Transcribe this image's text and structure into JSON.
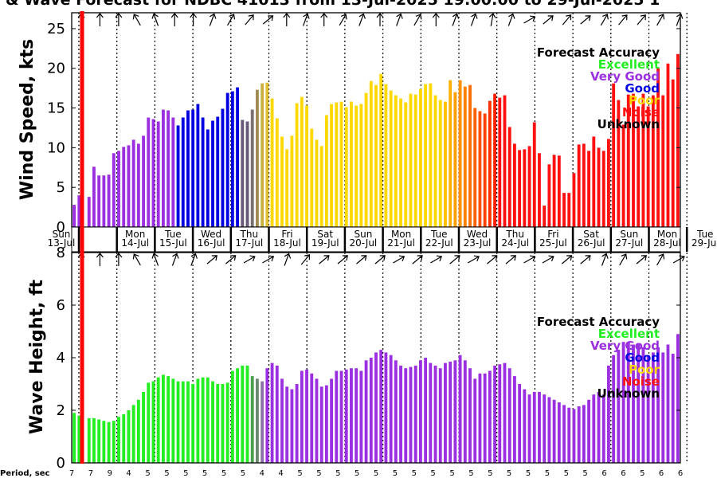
{
  "title": "& Wave Forecast for NDBC 41013 from 13-Jul-2025 19:00:00 to 29-Jul-2025 1",
  "period_label": "Period, sec",
  "legend": {
    "title": "Forecast Accuracy",
    "items": [
      {
        "label": "Excellent",
        "color": "#22ee22"
      },
      {
        "label": "Very Good",
        "color": "#9b30e0"
      },
      {
        "label": "Good",
        "color": "#0000e0"
      },
      {
        "label": "Poor",
        "color": "#ffd800"
      },
      {
        "label": "Noise",
        "color": "#ff1010"
      },
      {
        "label": "Unknown",
        "color": "#000000"
      }
    ]
  },
  "days": [
    {
      "dow": "Sun",
      "date": "13-Jul"
    },
    {
      "dow": "Mon",
      "date": "14-Jul"
    },
    {
      "dow": "Tue",
      "date": "15-Jul"
    },
    {
      "dow": "Wed",
      "date": "16-Jul"
    },
    {
      "dow": "Thu",
      "date": "17-Jul"
    },
    {
      "dow": "Fri",
      "date": "18-Jul"
    },
    {
      "dow": "Sat",
      "date": "19-Jul"
    },
    {
      "dow": "Sun",
      "date": "20-Jul"
    },
    {
      "dow": "Mon",
      "date": "21-Jul"
    },
    {
      "dow": "Tue",
      "date": "22-Jul"
    },
    {
      "dow": "Wed",
      "date": "23-Jul"
    },
    {
      "dow": "Thu",
      "date": "24-Jul"
    },
    {
      "dow": "Fri",
      "date": "25-Jul"
    },
    {
      "dow": "Sat",
      "date": "26-Jul"
    },
    {
      "dow": "Sun",
      "date": "27-Jul"
    },
    {
      "dow": "Mon",
      "date": "28-Jul"
    },
    {
      "dow": "Tue",
      "date": "29-Jul"
    }
  ],
  "periods": [
    "7",
    "7",
    "9",
    "4",
    "5",
    "5",
    "5",
    "5",
    "5",
    "5",
    "4",
    "4",
    "5",
    "5",
    "5",
    "5",
    "5",
    "5",
    "5",
    "5",
    "5",
    "5",
    "5",
    "5",
    "5",
    "5",
    "5",
    "5",
    "6",
    "6",
    "5",
    "6",
    "6"
  ],
  "chart_data": [
    {
      "type": "bar",
      "ylabel": "Wind Speed, kts",
      "ylim": [
        0,
        27
      ],
      "yticks": [
        0,
        5,
        10,
        15,
        20,
        25
      ],
      "values": [
        2.8,
        4,
        0,
        3.8,
        7.6,
        6.5,
        6.5,
        6.6,
        9.3,
        9.6,
        10.1,
        10.3,
        11,
        10.5,
        11.5,
        13.8,
        13.6,
        13.3,
        14.8,
        14.7,
        13.8,
        12.8,
        13.8,
        14.7,
        14.8,
        15.5,
        13.8,
        12.3,
        13.4,
        13.9,
        14.9,
        16.9,
        17.1,
        17.6,
        13.5,
        13.3,
        14.8,
        17.3,
        18.1,
        18.2,
        16.2,
        13.7,
        11.4,
        9.8,
        11.5,
        15.6,
        16.4,
        15.3,
        12.4,
        11,
        10.2,
        14.1,
        15.5,
        15.7,
        15.8,
        15.1,
        15.8,
        15.3,
        15.5,
        16.9,
        18.4,
        17.9,
        19.3,
        18,
        17.2,
        16.6,
        16.2,
        15.7,
        16.8,
        16.7,
        17.4,
        18,
        18.1,
        16.6,
        16,
        15.8,
        18.5,
        17,
        18.5,
        17.7,
        17.9,
        15,
        14.6,
        14.3,
        15.9,
        16.8,
        16.3,
        16.6,
        12.6,
        10.5,
        9.7,
        9.8,
        10.2,
        13.2,
        9.3,
        2.7,
        7.9,
        9.1,
        9,
        4.3,
        4.3,
        6.8,
        10.4,
        10.5,
        9.6,
        11.4,
        10,
        9.6,
        11.1,
        18.1,
        16,
        12.9,
        16.7,
        16.8,
        15.2,
        16.8,
        15.2,
        16.6,
        20,
        16.6,
        20.6,
        18.6,
        21.8
      ],
      "colors": [
        "#9b30e0",
        "#9b30e0",
        "#9b30e0",
        "#9b30e0",
        "#9b30e0",
        "#9b30e0",
        "#9b30e0",
        "#9b30e0",
        "#9b30e0",
        "#9b30e0",
        "#9b30e0",
        "#9b30e0",
        "#9b30e0",
        "#9b30e0",
        "#9b30e0",
        "#9b30e0",
        "#9b30e0",
        "#9b30e0",
        "#9b30e0",
        "#9b30e0",
        "#9b30e0",
        "#0000e0",
        "#0000e0",
        "#0000e0",
        "#0000e0",
        "#0000e0",
        "#0000e0",
        "#0000e0",
        "#0000e0",
        "#0000e0",
        "#0000e0",
        "#0000e0",
        "#0000e0",
        "#0000e0",
        "#6a5a7a",
        "#6a5a7a",
        "#7a7070",
        "#a08c50",
        "#c8b040",
        "#e0c030",
        "#ffd800",
        "#ffd800",
        "#ffd800",
        "#ffd800",
        "#ffd800",
        "#ffd800",
        "#ffd800",
        "#ffd800",
        "#ffd800",
        "#ffd800",
        "#ffd800",
        "#ffd800",
        "#ffd800",
        "#ffd800",
        "#ffd800",
        "#ffd800",
        "#ffd800",
        "#ffd800",
        "#ffd800",
        "#ffd800",
        "#ffd800",
        "#ffd800",
        "#ffd800",
        "#ffd800",
        "#ffd800",
        "#ffd800",
        "#ffd800",
        "#ffd800",
        "#ffd800",
        "#ffd800",
        "#ffd800",
        "#ffd800",
        "#ffd800",
        "#ffd800",
        "#ffd800",
        "#ffc000",
        "#ffb000",
        "#ffa000",
        "#ff9000",
        "#ff8000",
        "#ff7000",
        "#ff6000",
        "#ff5000",
        "#ff4000",
        "#ff3000",
        "#ff2000",
        "#ff1010",
        "#ff1010",
        "#ff1010",
        "#ff1010",
        "#ff1010",
        "#ff1010",
        "#ff1010",
        "#ff1010",
        "#ff1010",
        "#ff1010",
        "#ff1010",
        "#ff1010",
        "#ff1010",
        "#ff1010",
        "#ff1010",
        "#ff1010",
        "#ff1010",
        "#ff1010",
        "#ff1010",
        "#ff1010",
        "#ff1010",
        "#ff1010",
        "#ff1010",
        "#ff1010",
        "#ff1010",
        "#ff1010",
        "#ff1010",
        "#ff1010",
        "#ff1010",
        "#ff1010",
        "#ff1010",
        "#ff1010",
        "#ff1010",
        "#ff1010",
        "#ff1010",
        "#ff1010",
        "#ff1010"
      ]
    },
    {
      "type": "bar",
      "ylabel": "Wave Height, ft",
      "ylim": [
        0,
        8
      ],
      "yticks": [
        0,
        2,
        4,
        6,
        8
      ],
      "values": [
        1.9,
        1.8,
        0,
        1.7,
        1.7,
        1.65,
        1.6,
        1.55,
        1.6,
        1.75,
        1.85,
        2.0,
        2.2,
        2.4,
        2.7,
        3.05,
        3.1,
        3.25,
        3.35,
        3.3,
        3.2,
        3.1,
        3.1,
        3.1,
        3.0,
        3.2,
        3.25,
        3.25,
        3.1,
        3.0,
        3.0,
        3.05,
        3.5,
        3.6,
        3.7,
        3.7,
        3.3,
        3.2,
        3.1,
        3.6,
        3.8,
        3.7,
        3.2,
        2.9,
        2.8,
        3.0,
        3.5,
        3.55,
        3.4,
        3.2,
        2.9,
        2.95,
        3.2,
        3.5,
        3.5,
        3.55,
        3.6,
        3.6,
        3.5,
        3.9,
        4.0,
        4.2,
        4.3,
        4.2,
        4.1,
        3.9,
        3.7,
        3.6,
        3.65,
        3.7,
        3.9,
        4.0,
        3.8,
        3.7,
        3.6,
        3.8,
        3.85,
        3.9,
        4.1,
        3.9,
        3.6,
        3.2,
        3.4,
        3.4,
        3.5,
        3.7,
        3.75,
        3.8,
        3.6,
        3.3,
        3.0,
        2.8,
        2.6,
        2.7,
        2.7,
        2.6,
        2.5,
        2.4,
        2.3,
        2.2,
        2.1,
        2.05,
        2.15,
        2.2,
        2.4,
        2.6,
        2.7,
        2.6,
        3.7,
        4.1,
        4.3,
        4.6,
        4.6,
        4.5,
        4.55,
        4.4,
        4.1,
        4.2,
        4.4,
        4.2,
        4.5,
        4.15,
        4.9
      ],
      "colors": [
        "#22ee22",
        "#22ee22",
        "#22ee22",
        "#22ee22",
        "#22ee22",
        "#22ee22",
        "#22ee22",
        "#22ee22",
        "#22ee22",
        "#22ee22",
        "#22ee22",
        "#22ee22",
        "#22ee22",
        "#22ee22",
        "#22ee22",
        "#22ee22",
        "#22ee22",
        "#22ee22",
        "#22ee22",
        "#22ee22",
        "#22ee22",
        "#22ee22",
        "#22ee22",
        "#22ee22",
        "#22ee22",
        "#22ee22",
        "#22ee22",
        "#22ee22",
        "#22ee22",
        "#22ee22",
        "#22ee22",
        "#22ee22",
        "#22ee22",
        "#22ee22",
        "#22ee22",
        "#22ee22",
        "#4aa050",
        "#6a8a70",
        "#8a70a8",
        "#9b30e0",
        "#9b30e0",
        "#9b30e0",
        "#9b30e0",
        "#9b30e0",
        "#9b30e0",
        "#9b30e0",
        "#9b30e0",
        "#9b30e0",
        "#9b30e0",
        "#9b30e0",
        "#9b30e0",
        "#9b30e0",
        "#9b30e0",
        "#9b30e0",
        "#9b30e0",
        "#9b30e0",
        "#9b30e0",
        "#9b30e0",
        "#9b30e0",
        "#9b30e0",
        "#9b30e0",
        "#9b30e0",
        "#9b30e0",
        "#9b30e0",
        "#9b30e0",
        "#9b30e0",
        "#9b30e0",
        "#9b30e0",
        "#9b30e0",
        "#9b30e0",
        "#9b30e0",
        "#9b30e0",
        "#9b30e0",
        "#9b30e0",
        "#9b30e0",
        "#9b30e0",
        "#9b30e0",
        "#9b30e0",
        "#9b30e0",
        "#9b30e0",
        "#9b30e0",
        "#9b30e0",
        "#9b30e0",
        "#9b30e0",
        "#9b30e0",
        "#9b30e0",
        "#9b30e0",
        "#9b30e0",
        "#9b30e0",
        "#9b30e0",
        "#9b30e0",
        "#9b30e0",
        "#9b30e0",
        "#9b30e0",
        "#9b30e0",
        "#9b30e0",
        "#9b30e0",
        "#9b30e0",
        "#9b30e0",
        "#9b30e0",
        "#9b30e0",
        "#9b30e0",
        "#9b30e0",
        "#9b30e0",
        "#9b30e0",
        "#9b30e0",
        "#9b30e0",
        "#9b30e0",
        "#9b30e0",
        "#9b30e0",
        "#9b30e0",
        "#9b30e0",
        "#9b30e0",
        "#9b30e0",
        "#9b30e0",
        "#9b30e0",
        "#9b30e0",
        "#9b30e0",
        "#9b30e0",
        "#9b30e0",
        "#9b30e0",
        "#9b30e0",
        "#9b30e0"
      ]
    }
  ],
  "wind_arrow_angles": [
    180,
    180,
    180,
    150,
    160,
    180,
    180,
    200,
    210,
    220,
    230,
    180,
    200,
    180,
    210,
    200,
    180,
    200,
    210,
    180,
    200,
    200,
    190,
    200,
    240,
    230,
    220,
    230,
    210,
    220,
    220,
    210,
    200
  ],
  "wave_arrow_angles": [
    180,
    180,
    180,
    150,
    160,
    200,
    200,
    230,
    230,
    240,
    240,
    200,
    220,
    230,
    230,
    230,
    230,
    240,
    230,
    240,
    230,
    240,
    230,
    230,
    240,
    240,
    230,
    230,
    200,
    210,
    230,
    210,
    240
  ]
}
